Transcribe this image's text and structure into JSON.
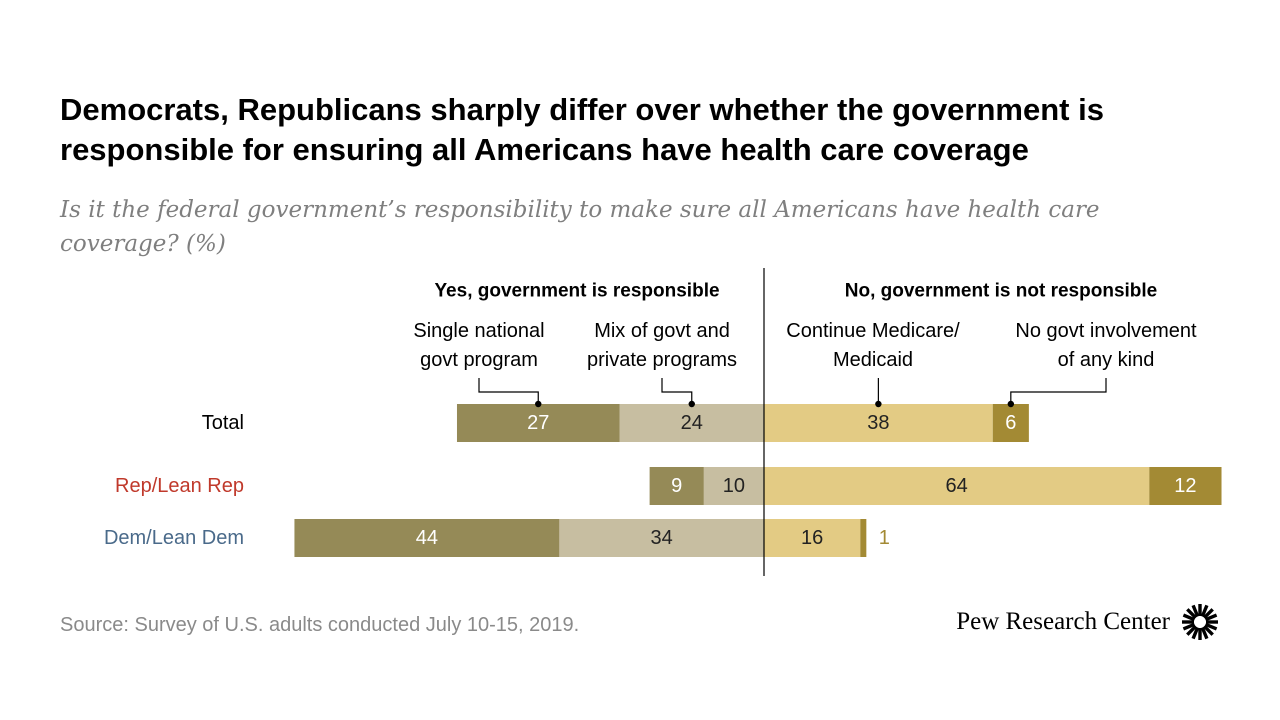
{
  "title": "Democrats, Republicans sharply differ over whether the government is responsible for ensuring all Americans have health care coverage",
  "subtitle": "Is it the federal government’s responsibility to make sure all Americans have health care coverage? (%)",
  "source": "Source: Survey of U.S. adults conducted July 10-15, 2019.",
  "logo_text": "Pew Research Center",
  "colors": {
    "single": "#958a57",
    "mix": "#c7bea1",
    "medicare": "#e3cb84",
    "nogovt": "#a38a34",
    "rep_label": "#c0392b",
    "dem_label": "#4a6a8a",
    "text_dark": "#ffffff",
    "text_light": "#222222",
    "leader": "#000000",
    "divider": "#000000"
  },
  "chart_data": {
    "type": "bar",
    "orientation": "horizontal",
    "layout": "diverging-stacked",
    "group_headers": [
      {
        "label": "Yes, government is responsible",
        "side": "left"
      },
      {
        "label": "No, government is not responsible",
        "side": "right"
      }
    ],
    "categories": [
      "Total",
      "Rep/Lean Rep",
      "Dem/Lean Dem"
    ],
    "category_colors": [
      "#000000",
      "#c0392b",
      "#4a6a8a"
    ],
    "series": [
      {
        "name": "Single national govt program",
        "side": "left",
        "order": 2,
        "color": "#958a57",
        "values": [
          27,
          9,
          44
        ]
      },
      {
        "name": "Mix of govt and private programs",
        "side": "left",
        "order": 1,
        "color": "#c7bea1",
        "values": [
          24,
          10,
          34
        ]
      },
      {
        "name": "Continue Medicare/ Medicaid",
        "side": "right",
        "order": 1,
        "color": "#e3cb84",
        "values": [
          38,
          64,
          16
        ]
      },
      {
        "name": "No govt involvement of any kind",
        "side": "right",
        "order": 2,
        "color": "#a38a34",
        "values": [
          6,
          12,
          1
        ]
      }
    ],
    "legend_lines": [
      [
        "Single national",
        "govt program"
      ],
      [
        "Mix of govt and",
        "private programs"
      ],
      [
        "Continue Medicare/",
        "Medicaid"
      ],
      [
        "No govt involvement",
        "of any kind"
      ]
    ],
    "xlim": [
      -51,
      78
    ],
    "grid": false
  }
}
